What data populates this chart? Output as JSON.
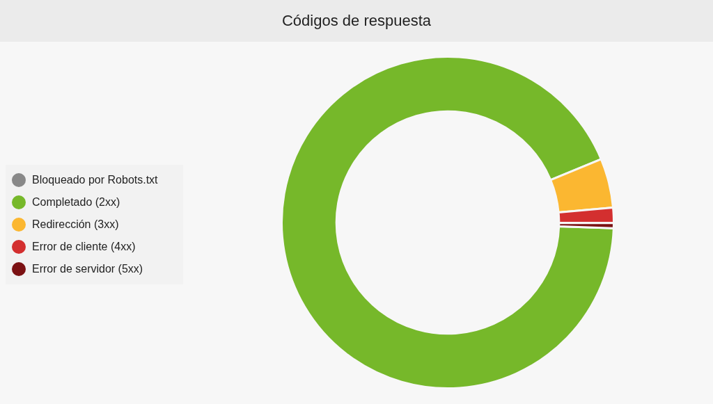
{
  "chart_data": {
    "type": "donut",
    "title": "Códigos de respuesta",
    "categories": [
      "Bloqueado por Robots.txt",
      "Completado (2xx)",
      "Redirección (3xx)",
      "Error de cliente (4xx)",
      "Error de servidor (5xx)"
    ],
    "values": [
      0,
      93.2,
      4.8,
      1.5,
      0.5
    ],
    "colors": [
      "#888888",
      "#76b82a",
      "#fbb731",
      "#d32f2f",
      "#7b1113"
    ],
    "legend": "left"
  }
}
